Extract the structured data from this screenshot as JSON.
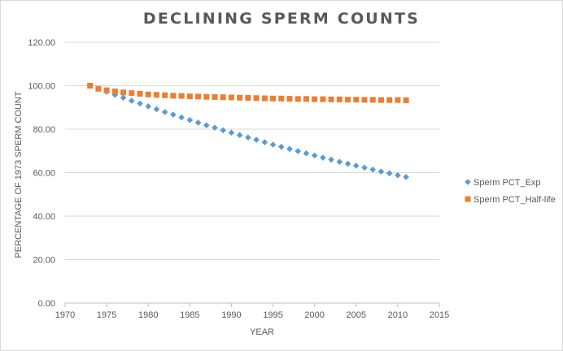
{
  "chart_data": {
    "type": "scatter",
    "title": "DECLINING SPERM COUNTS",
    "xlabel": "YEAR",
    "ylabel": "PERCENTAGE OF 1973 SPERM COUNT",
    "xlim": [
      1970,
      2015
    ],
    "ylim": [
      0,
      120
    ],
    "x_ticks": [
      "1970",
      "1975",
      "1980",
      "1985",
      "1990",
      "1995",
      "2000",
      "2005",
      "2010",
      "2015"
    ],
    "y_ticks": [
      "0.00",
      "20.00",
      "40.00",
      "60.00",
      "80.00",
      "100.00",
      "120.00"
    ],
    "grid": "horizontal",
    "legend_position": "right",
    "x": [
      1973,
      1974,
      1975,
      1976,
      1977,
      1978,
      1979,
      1980,
      1981,
      1982,
      1983,
      1984,
      1985,
      1986,
      1987,
      1988,
      1989,
      1990,
      1991,
      1992,
      1993,
      1994,
      1995,
      1996,
      1997,
      1998,
      1999,
      2000,
      2001,
      2002,
      2003,
      2004,
      2005,
      2006,
      2007,
      2008,
      2009,
      2010,
      2011
    ],
    "series": [
      {
        "name": "Sperm PCT_Exp",
        "color": "#5b9bd5",
        "marker": "diamond",
        "values": [
          100.0,
          98.6,
          97.2,
          95.8,
          94.5,
          93.1,
          91.8,
          90.5,
          89.2,
          87.9,
          86.7,
          85.4,
          84.2,
          83.0,
          81.8,
          80.7,
          79.5,
          78.4,
          77.3,
          76.2,
          75.1,
          74.0,
          72.9,
          71.9,
          70.9,
          69.9,
          68.9,
          67.9,
          66.9,
          66.0,
          65.0,
          64.1,
          63.2,
          62.3,
          61.4,
          60.5,
          59.7,
          58.8,
          58.0
        ]
      },
      {
        "name": "Sperm PCT_Half-life",
        "color": "#ed7d31",
        "marker": "square",
        "values": [
          100.0,
          98.6,
          97.9,
          97.4,
          96.9,
          96.6,
          96.3,
          96.0,
          95.8,
          95.6,
          95.4,
          95.3,
          95.1,
          95.0,
          94.9,
          94.8,
          94.7,
          94.6,
          94.5,
          94.4,
          94.3,
          94.2,
          94.1,
          94.1,
          94.0,
          93.9,
          93.9,
          93.8,
          93.8,
          93.7,
          93.7,
          93.6,
          93.6,
          93.5,
          93.5,
          93.4,
          93.4,
          93.4,
          93.3
        ]
      }
    ]
  }
}
